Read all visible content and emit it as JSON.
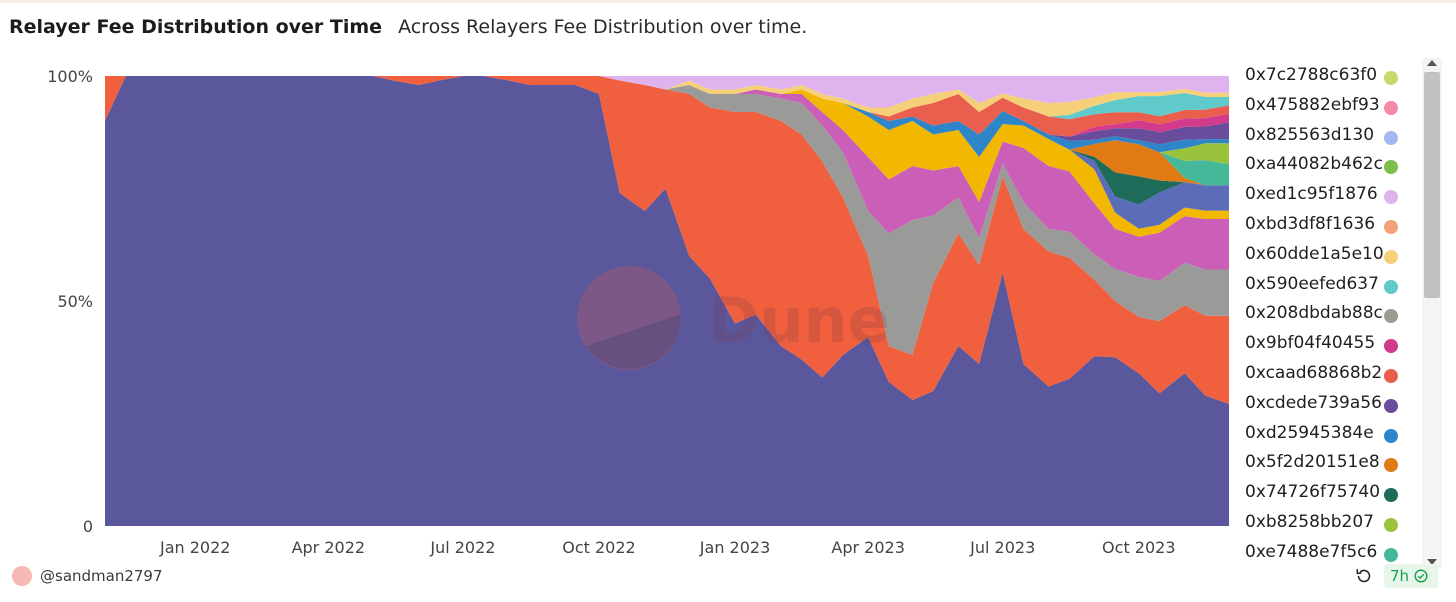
{
  "header": {
    "title": "Relayer Fee Distribution over Time",
    "subtitle": "Across Relayers Fee Distribution over time."
  },
  "watermark": {
    "text": "Dune"
  },
  "footer": {
    "author": "@sandman2797",
    "age": "7h"
  },
  "icons": {
    "refresh": "refresh-icon",
    "check": "check-circle-icon",
    "avatar": "avatar-circle"
  },
  "legend": {
    "items": [
      {
        "label": "0x7c2788c63f0",
        "color": "#c6d96a"
      },
      {
        "label": "0x475882ebf93",
        "color": "#f58aa8"
      },
      {
        "label": "0x825563d130",
        "color": "#a3b8f0"
      },
      {
        "label": "0xa44082b462c",
        "color": "#7cbf4c"
      },
      {
        "label": "0xed1c95f1876",
        "color": "#dfb3ee"
      },
      {
        "label": "0xbd3df8f1636",
        "color": "#f3a27c"
      },
      {
        "label": "0x60dde1a5e10",
        "color": "#f6d078"
      },
      {
        "label": "0x590eefed637",
        "color": "#5fcac9"
      },
      {
        "label": "0x208dbdab88c",
        "color": "#9b9b90"
      },
      {
        "label": "0x9bf04f40455",
        "color": "#d23a8c"
      },
      {
        "label": "0xcaad68868b2",
        "color": "#ea5e4e"
      },
      {
        "label": "0xcdede739a56",
        "color": "#6a4c9c"
      },
      {
        "label": "0xd25945384e",
        "color": "#2e86c8"
      },
      {
        "label": "0x5f2d20151e8",
        "color": "#e07a14"
      },
      {
        "label": "0x74726f75740",
        "color": "#1f6b5a"
      },
      {
        "label": "0xb8258bb207",
        "color": "#9ac23c"
      },
      {
        "label": "0xe7488e7f5c6",
        "color": "#45b89a"
      }
    ]
  },
  "chart_data": {
    "type": "area",
    "stacking": "percent",
    "title": "Relayer Fee Distribution over Time",
    "subtitle": "Across Relayers Fee Distribution over time.",
    "xlabel": "",
    "ylabel": "",
    "ylim": [
      0,
      100
    ],
    "yticks": [
      "0",
      "50%",
      "100%"
    ],
    "xticks": [
      "Jan 2022",
      "Apr 2022",
      "Jul 2022",
      "Oct 2022",
      "Jan 2023",
      "Apr 2023",
      "Jul 2023",
      "Oct 2023"
    ],
    "x": [
      "2021-11-01",
      "2021-11-15",
      "2021-12-01",
      "2021-12-15",
      "2022-01-01",
      "2022-01-15",
      "2022-02-01",
      "2022-02-15",
      "2022-03-01",
      "2022-03-15",
      "2022-04-01",
      "2022-04-15",
      "2022-05-01",
      "2022-05-15",
      "2022-06-01",
      "2022-06-15",
      "2022-07-01",
      "2022-07-15",
      "2022-08-01",
      "2022-08-15",
      "2022-09-01",
      "2022-09-15",
      "2022-10-01",
      "2022-10-15",
      "2022-11-01",
      "2022-11-15",
      "2022-12-01",
      "2022-12-15",
      "2023-01-01",
      "2023-01-15",
      "2023-02-01",
      "2023-02-15",
      "2023-03-01",
      "2023-03-15",
      "2023-04-01",
      "2023-04-15",
      "2023-05-01",
      "2023-05-15",
      "2023-06-01",
      "2023-06-15",
      "2023-07-01",
      "2023-07-15",
      "2023-08-01",
      "2023-08-15",
      "2023-09-01",
      "2023-09-15",
      "2023-10-01",
      "2023-10-15",
      "2023-11-01",
      "2023-11-15",
      "2023-12-01"
    ],
    "legend_position": "right",
    "grid": false,
    "series": [
      {
        "name": "0xe7488e7f5c6",
        "color": "#5a579c",
        "values": [
          90,
          100,
          100,
          100,
          100,
          100,
          100,
          100,
          100,
          100,
          100,
          100,
          100,
          99,
          98,
          99,
          100,
          100,
          99,
          98,
          98,
          98,
          96,
          74,
          70,
          75,
          60,
          55,
          45,
          47,
          40,
          37,
          33,
          38,
          42,
          32,
          28,
          30,
          40,
          36,
          58,
          36,
          31,
          34,
          40,
          42,
          38,
          33,
          36,
          31,
          29
        ]
      },
      {
        "name": "0xb8258bb207",
        "color": "#f05f3e",
        "values": [
          10,
          0,
          0,
          0,
          0,
          0,
          0,
          0,
          0,
          0,
          0,
          0,
          0,
          1,
          2,
          1,
          0,
          0,
          1,
          2,
          2,
          2,
          4,
          25,
          28,
          22,
          36,
          38,
          47,
          45,
          50,
          50,
          48,
          35,
          18,
          8,
          10,
          24,
          25,
          22,
          22,
          30,
          30,
          28,
          18,
          14,
          14,
          18,
          16,
          19,
          21
        ]
      },
      {
        "name": "0x74726f75740",
        "color": "#9a9a98",
        "values": [
          0,
          0,
          0,
          0,
          0,
          0,
          0,
          0,
          0,
          0,
          0,
          0,
          0,
          0,
          0,
          0,
          0,
          0,
          0,
          0,
          0,
          0,
          0,
          0,
          0,
          0,
          2,
          3,
          4,
          4,
          5,
          7,
          8,
          10,
          10,
          25,
          30,
          15,
          8,
          6,
          3,
          6,
          5,
          6,
          6,
          8,
          10,
          10,
          10,
          11,
          11
        ]
      },
      {
        "name": "0x5f2d20151e8",
        "color": "#cb5fb8",
        "values": [
          0,
          0,
          0,
          0,
          0,
          0,
          0,
          0,
          0,
          0,
          0,
          0,
          0,
          0,
          0,
          0,
          0,
          0,
          0,
          0,
          0,
          0,
          0,
          0,
          0,
          0,
          0,
          0,
          0,
          1,
          1,
          2,
          3,
          5,
          12,
          12,
          12,
          10,
          7,
          8,
          5,
          12,
          14,
          14,
          12,
          10,
          10,
          12,
          11,
          12,
          12
        ]
      },
      {
        "name": "0xd25945384e",
        "color": "#f2b701",
        "values": [
          0,
          0,
          0,
          0,
          0,
          0,
          0,
          0,
          0,
          0,
          0,
          0,
          0,
          0,
          0,
          0,
          0,
          0,
          0,
          0,
          0,
          0,
          0,
          0,
          0,
          0,
          0,
          0,
          0,
          0,
          0,
          1,
          3,
          6,
          9,
          11,
          10,
          8,
          8,
          10,
          4,
          5,
          6,
          5,
          8,
          4,
          2,
          2,
          2,
          2,
          2
        ]
      },
      {
        "name": "0xcdede739a56",
        "color": "#5b6cb8",
        "values": [
          0,
          0,
          0,
          0,
          0,
          0,
          0,
          0,
          0,
          0,
          0,
          0,
          0,
          0,
          0,
          0,
          0,
          0,
          0,
          0,
          0,
          0,
          0,
          0,
          0,
          0,
          0,
          0,
          0,
          0,
          0,
          0,
          0,
          0,
          0,
          0,
          0,
          0,
          0,
          0,
          0,
          0,
          0,
          0,
          2,
          4,
          6,
          8,
          6,
          6,
          6
        ]
      },
      {
        "name": "0xcaad68868b2",
        "color": "#1f6b5a",
        "values": [
          0,
          0,
          0,
          0,
          0,
          0,
          0,
          0,
          0,
          0,
          0,
          0,
          0,
          0,
          0,
          0,
          0,
          0,
          0,
          0,
          0,
          0,
          0,
          0,
          0,
          0,
          0,
          0,
          0,
          0,
          0,
          0,
          0,
          0,
          0,
          0,
          0,
          0,
          0,
          0,
          0,
          0,
          0,
          0,
          1,
          6,
          7,
          3,
          0,
          0,
          0
        ]
      },
      {
        "name": "0x9bf04f40455",
        "color": "#e07a14",
        "values": [
          0,
          0,
          0,
          0,
          0,
          0,
          0,
          0,
          0,
          0,
          0,
          0,
          0,
          0,
          0,
          0,
          0,
          0,
          0,
          0,
          0,
          0,
          0,
          0,
          0,
          0,
          0,
          0,
          0,
          0,
          0,
          0,
          0,
          0,
          0,
          0,
          0,
          0,
          0,
          0,
          0,
          0,
          0,
          0,
          3,
          8,
          8,
          7,
          1,
          0,
          0
        ]
      },
      {
        "name": "0x208dbdab88c",
        "color": "#45b89a",
        "values": [
          0,
          0,
          0,
          0,
          0,
          0,
          0,
          0,
          0,
          0,
          0,
          0,
          0,
          0,
          0,
          0,
          0,
          0,
          0,
          0,
          0,
          0,
          0,
          0,
          0,
          0,
          0,
          0,
          0,
          0,
          0,
          0,
          0,
          0,
          0,
          0,
          0,
          0,
          0,
          0,
          0,
          0,
          0,
          0,
          0,
          0,
          0,
          0,
          4,
          6,
          5
        ]
      },
      {
        "name": "0x590eefed637",
        "color": "#9ac23c",
        "values": [
          0,
          0,
          0,
          0,
          0,
          0,
          0,
          0,
          0,
          0,
          0,
          0,
          0,
          0,
          0,
          0,
          0,
          0,
          0,
          0,
          0,
          0,
          0,
          0,
          0,
          0,
          0,
          0,
          0,
          0,
          0,
          0,
          0,
          0,
          0,
          0,
          0,
          0,
          0,
          0,
          0,
          0,
          0,
          0,
          0,
          0,
          0,
          0,
          3,
          4,
          5
        ]
      },
      {
        "name": "0x60dde1a5e10",
        "color": "#2e86c8",
        "values": [
          0,
          0,
          0,
          0,
          0,
          0,
          0,
          0,
          0,
          0,
          0,
          0,
          0,
          0,
          0,
          0,
          0,
          0,
          0,
          0,
          0,
          0,
          0,
          0,
          0,
          0,
          0,
          0,
          0,
          0,
          0,
          0,
          0,
          0,
          1,
          2,
          1,
          2,
          2,
          5,
          3,
          1,
          1,
          2,
          1,
          1,
          1,
          2,
          2,
          1,
          1
        ]
      },
      {
        "name": "0xbd3df8f1636",
        "color": "#6a4c9c",
        "values": [
          0,
          0,
          0,
          0,
          0,
          0,
          0,
          0,
          0,
          0,
          0,
          0,
          0,
          0,
          0,
          0,
          0,
          0,
          0,
          0,
          0,
          0,
          0,
          0,
          0,
          0,
          0,
          0,
          0,
          0,
          0,
          0,
          0,
          0,
          0,
          0,
          0,
          0,
          0,
          0,
          0,
          0,
          0,
          1,
          2,
          2,
          3,
          3,
          3,
          3,
          4
        ]
      },
      {
        "name": "0xed1c95f1876",
        "color": "#d23a8c",
        "values": [
          0,
          0,
          0,
          0,
          0,
          0,
          0,
          0,
          0,
          0,
          0,
          0,
          0,
          0,
          0,
          0,
          0,
          0,
          0,
          0,
          0,
          0,
          0,
          0,
          0,
          0,
          0,
          0,
          0,
          0,
          0,
          0,
          0,
          0,
          0,
          0,
          0,
          0,
          0,
          0,
          0,
          0,
          0,
          0,
          1,
          1,
          2,
          2,
          2,
          2,
          2
        ]
      },
      {
        "name": "0xa44082b462c",
        "color": "#ea5e4e",
        "values": [
          0,
          0,
          0,
          0,
          0,
          0,
          0,
          0,
          0,
          0,
          0,
          0,
          0,
          0,
          0,
          0,
          0,
          0,
          0,
          0,
          0,
          0,
          0,
          0,
          0,
          0,
          0,
          0,
          0,
          0,
          0,
          0,
          0,
          0,
          0,
          1,
          2,
          5,
          6,
          5,
          3,
          3,
          4,
          4,
          3,
          3,
          2,
          2,
          2,
          2,
          2
        ]
      },
      {
        "name": "0x825563d130",
        "color": "#5fcac9",
        "values": [
          0,
          0,
          0,
          0,
          0,
          0,
          0,
          0,
          0,
          0,
          0,
          0,
          0,
          0,
          0,
          0,
          0,
          0,
          0,
          0,
          0,
          0,
          0,
          0,
          0,
          0,
          0,
          0,
          0,
          0,
          0,
          0,
          0,
          0,
          0,
          0,
          0,
          0,
          0,
          0,
          0,
          0,
          0,
          1,
          2,
          3,
          4,
          5,
          4,
          3,
          2
        ]
      },
      {
        "name": "0x475882ebf93",
        "color": "#f6d078",
        "values": [
          0,
          0,
          0,
          0,
          0,
          0,
          0,
          0,
          0,
          0,
          0,
          0,
          0,
          0,
          0,
          0,
          0,
          0,
          0,
          0,
          0,
          0,
          0,
          0,
          0,
          0,
          1,
          1,
          1,
          1,
          1,
          1,
          1,
          1,
          1,
          2,
          2,
          2,
          1,
          2,
          1,
          2,
          3,
          3,
          2,
          2,
          1,
          1,
          1,
          1,
          1
        ]
      },
      {
        "name": "0x7c2788c63f0",
        "color": "#dfb3ee",
        "values": [
          0,
          0,
          0,
          0,
          0,
          0,
          0,
          0,
          0,
          0,
          0,
          0,
          0,
          0,
          0,
          0,
          0,
          0,
          0,
          0,
          0,
          0,
          0,
          1,
          2,
          3,
          1,
          3,
          3,
          2,
          3,
          2,
          4,
          5,
          7,
          7,
          5,
          4,
          3,
          6,
          4,
          5,
          6,
          6,
          5,
          4,
          4,
          4,
          3,
          4,
          4
        ]
      }
    ]
  }
}
